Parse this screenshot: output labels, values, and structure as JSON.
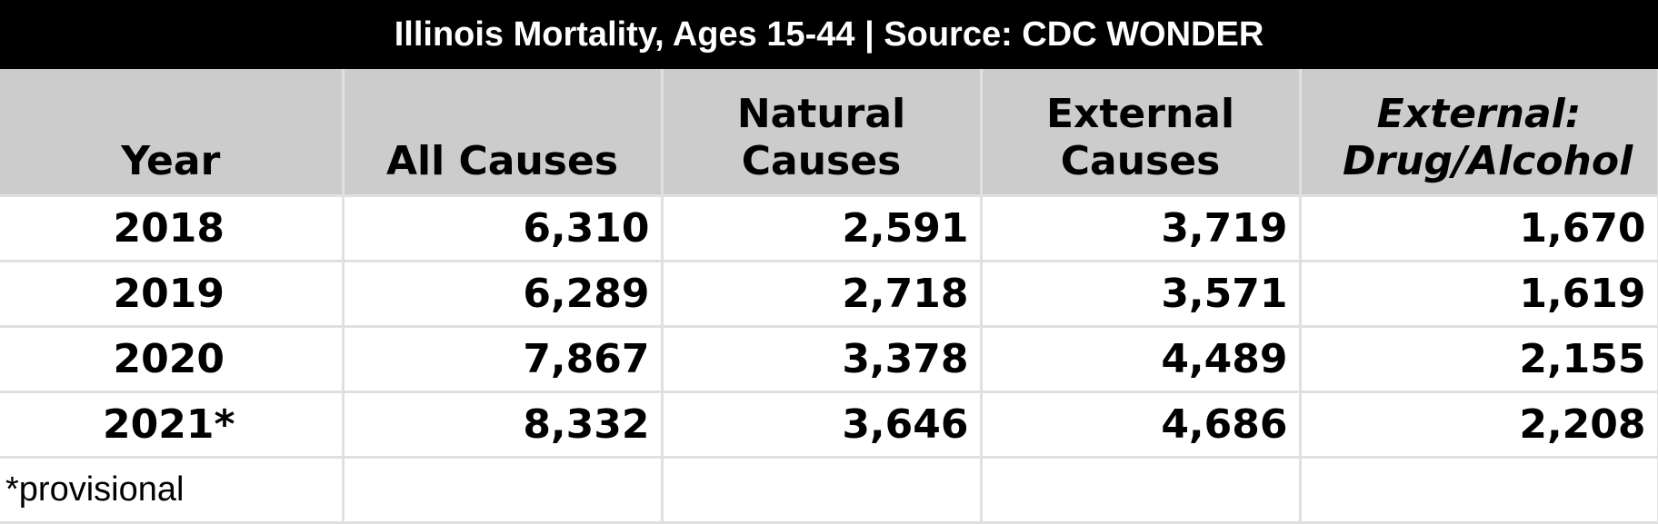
{
  "table": {
    "title": "Illinois Mortality, Ages 15-44 | Source: CDC WONDER",
    "columns": [
      "Year",
      "All Causes",
      "Natural Causes",
      "External Causes",
      "External: Drug/Alcohol"
    ],
    "rows": [
      [
        "2018",
        "6,310",
        "2,591",
        "3,719",
        "1,670"
      ],
      [
        "2019",
        "6,289",
        "2,718",
        "3,571",
        "1,619"
      ],
      [
        "2020",
        "7,867",
        "3,378",
        "4,489",
        "2,155"
      ],
      [
        "2021*",
        "8,332",
        "3,646",
        "4,686",
        "2,208"
      ]
    ],
    "footnote": "*provisional"
  }
}
